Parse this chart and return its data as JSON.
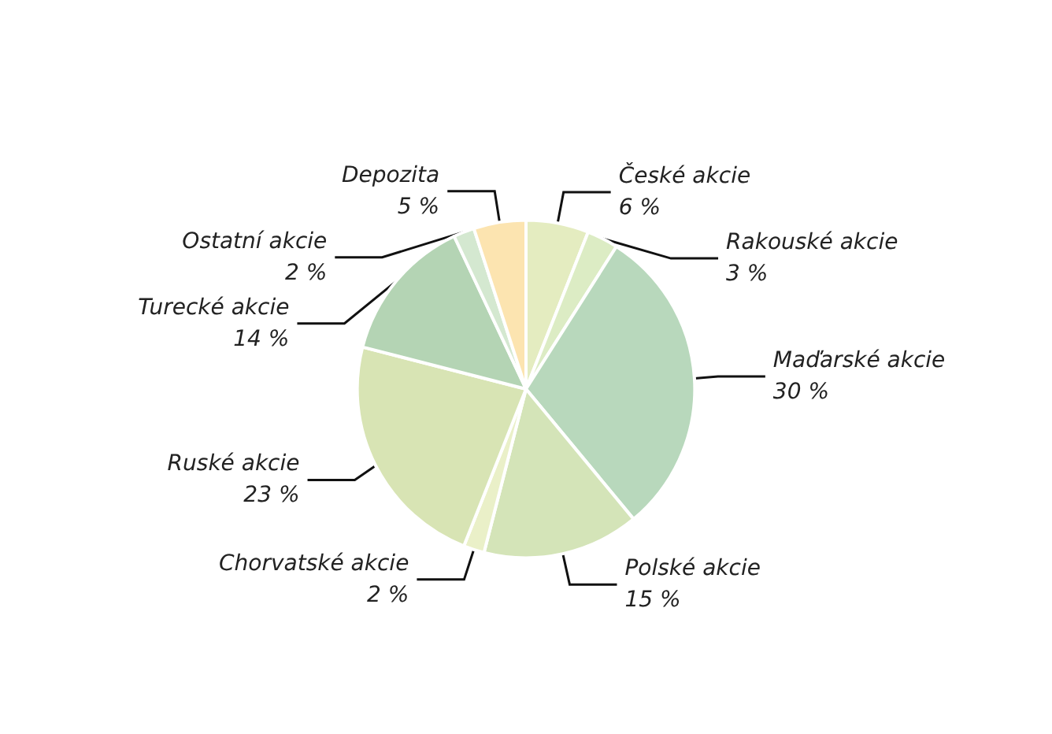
{
  "chart_data": {
    "type": "pie",
    "categories": [
      "České akcie",
      "Rakouské akcie",
      "Maďarské akcie",
      "Polské akcie",
      "Chorvatské akcie",
      "Ruské akcie",
      "Turecké akcie",
      "Ostatní akcie",
      "Depozita"
    ],
    "values": [
      6,
      3,
      30,
      15,
      2,
      23,
      14,
      2,
      5
    ],
    "value_labels": [
      "6 %",
      "3 %",
      "30 %",
      "15 %",
      "2 %",
      "23 %",
      "14 %",
      "2 %",
      "5 %"
    ],
    "colors": [
      "#e4ecc0",
      "#dcecc4",
      "#b8d8bc",
      "#d4e4b8",
      "#eaf0c8",
      "#d8e4b4",
      "#b4d4b4",
      "#d4e8d0",
      "#fce4b0"
    ],
    "legend": false
  }
}
